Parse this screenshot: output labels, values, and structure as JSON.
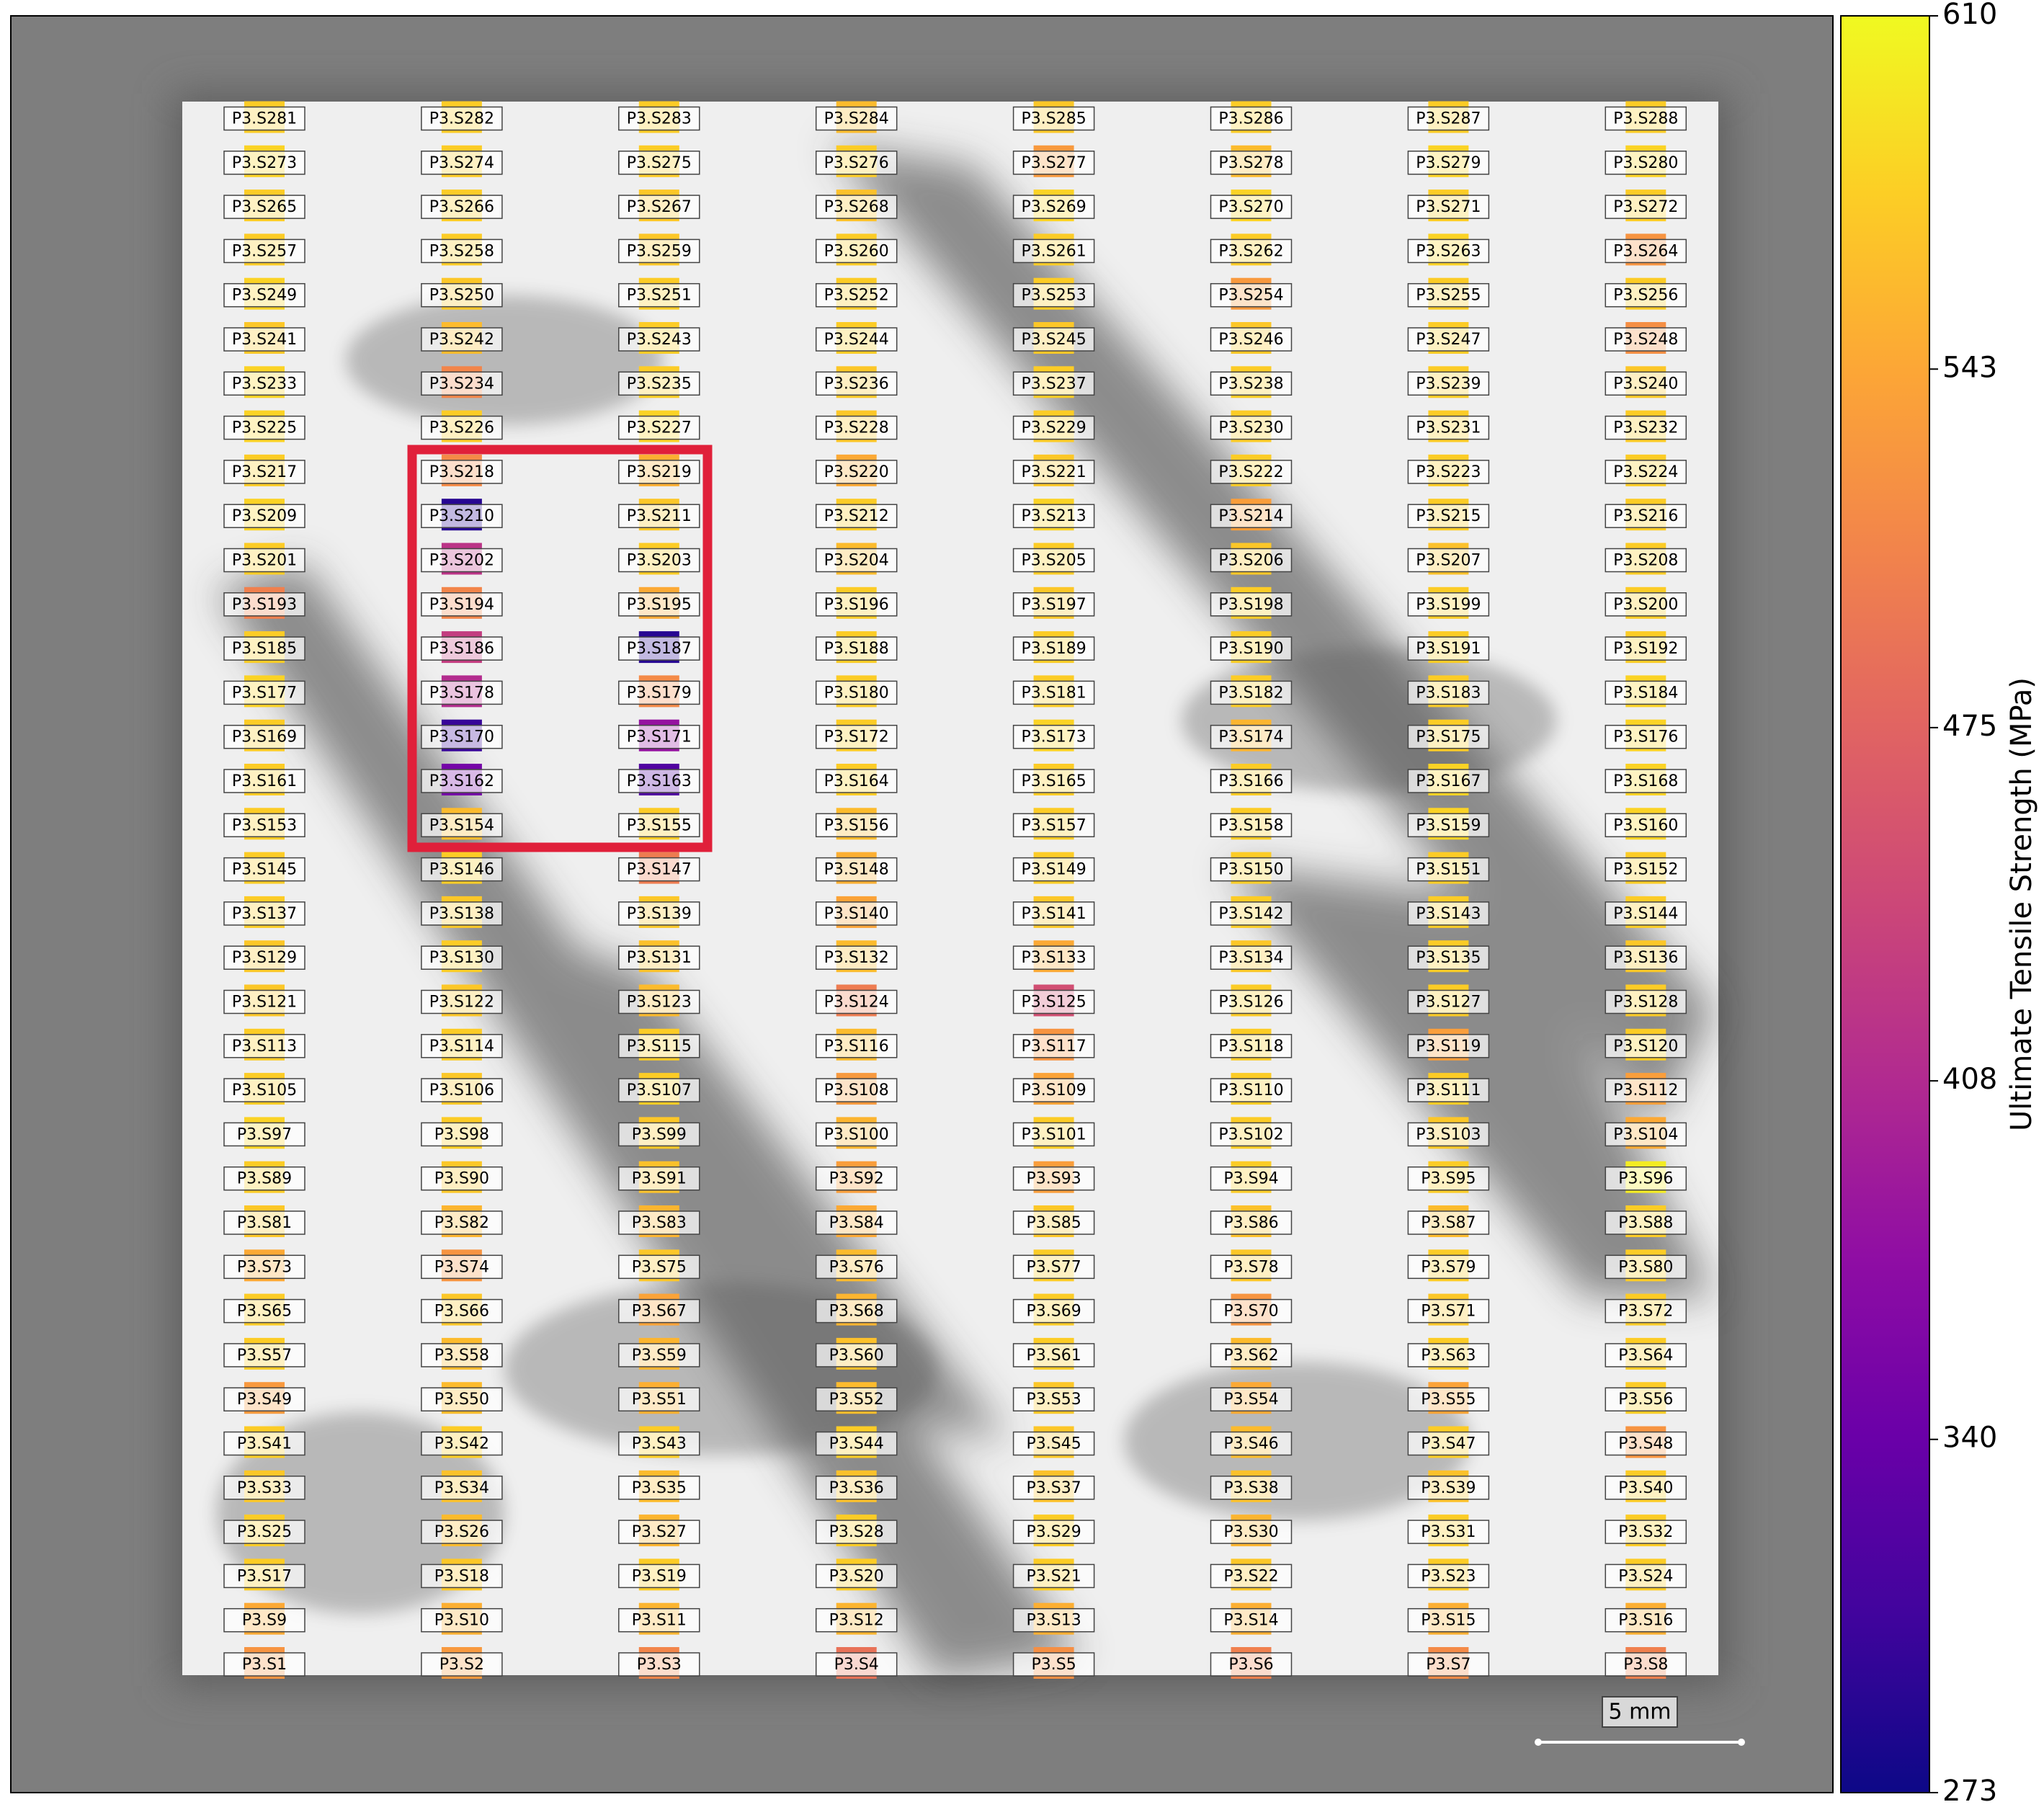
{
  "chart_data": {
    "type": "specimen_map",
    "colorbar_label": "Ultimate Tensile Strength (MPa)",
    "colormap": "plasma",
    "clim": [
      273,
      610
    ],
    "cticks": [
      273,
      340,
      408,
      475,
      543,
      610
    ],
    "scale_bar": "5 mm",
    "labels": [
      "P3.S1",
      "P3.S2",
      "P3.S3",
      "P3.S4",
      "P3.S5",
      "P3.S6",
      "P3.S7",
      "P3.S8",
      "P3.S9",
      "P3.S10",
      "P3.S11",
      "P3.S12",
      "P3.S13",
      "P3.S14",
      "P3.S15",
      "P3.S16",
      "P3.S17",
      "P3.S18",
      "P3.S19",
      "P3.S20",
      "P3.S21",
      "P3.S22",
      "P3.S23",
      "P3.S24",
      "P3.S25",
      "P3.S26",
      "P3.S27",
      "P3.S28",
      "P3.S29",
      "P3.S30",
      "P3.S31",
      "P3.S32",
      "P3.S33",
      "P3.S34",
      "P3.S35",
      "P3.S36",
      "P3.S37",
      "P3.S38",
      "P3.S39",
      "P3.S40",
      "P3.S41",
      "P3.S42",
      "P3.S43",
      "P3.S44",
      "P3.S45",
      "P3.S46",
      "P3.S47",
      "P3.S48",
      "P3.S49",
      "P3.S50",
      "P3.S51",
      "P3.S52",
      "P3.S53",
      "P3.S54",
      "P3.S55",
      "P3.S56",
      "P3.S57",
      "P3.S58",
      "P3.S59",
      "P3.S60",
      "P3.S61",
      "P3.S62",
      "P3.S63",
      "P3.S64",
      "P3.S65",
      "P3.S66",
      "P3.S67",
      "P3.S68",
      "P3.S69",
      "P3.S70",
      "P3.S71",
      "P3.S72",
      "P3.S73",
      "P3.S74",
      "P3.S75",
      "P3.S76",
      "P3.S77",
      "P3.S78",
      "P3.S79",
      "P3.S80",
      "P3.S81",
      "P3.S82",
      "P3.S83",
      "P3.S84",
      "P3.S85",
      "P3.S86",
      "P3.S87",
      "P3.S88",
      "P3.S89",
      "P3.S90",
      "P3.S91",
      "P3.S92",
      "P3.S93",
      "P3.S94",
      "P3.S95",
      "P3.S96",
      "P3.S97",
      "P3.S98",
      "P3.S99",
      "P3.S100",
      "P3.S101",
      "P3.S102",
      "P3.S103",
      "P3.S104",
      "P3.S105",
      "P3.S106",
      "P3.S107",
      "P3.S108",
      "P3.S109",
      "P3.S110",
      "P3.S111",
      "P3.S112",
      "P3.S113",
      "P3.S114",
      "P3.S115",
      "P3.S116",
      "P3.S117",
      "P3.S118",
      "P3.S119",
      "P3.S120",
      "P3.S121",
      "P3.S122",
      "P3.S123",
      "P3.S124",
      "P3.S125",
      "P3.S126",
      "P3.S127",
      "P3.S128",
      "P3.S129",
      "P3.S130",
      "P3.S131",
      "P3.S132",
      "P3.S133",
      "P3.S134",
      "P3.S135",
      "P3.S136",
      "P3.S137",
      "P3.S138",
      "P3.S139",
      "P3.S140",
      "P3.S141",
      "P3.S142",
      "P3.S143",
      "P3.S144",
      "P3.S145",
      "P3.S146",
      "P3.S147",
      "P3.S148",
      "P3.S149",
      "P3.S150",
      "P3.S151",
      "P3.S152",
      "P3.S153",
      "P3.S154",
      "P3.S155",
      "P3.S156",
      "P3.S157",
      "P3.S158",
      "P3.S159",
      "P3.S160",
      "P3.S161",
      "P3.S162",
      "P3.S163",
      "P3.S164",
      "P3.S165",
      "P3.S166",
      "P3.S167",
      "P3.S168",
      "P3.S169",
      "P3.S170",
      "P3.S171",
      "P3.S172",
      "P3.S173",
      "P3.S174",
      "P3.S175",
      "P3.S176",
      "P3.S177",
      "P3.S178",
      "P3.S179",
      "P3.S180",
      "P3.S181",
      "P3.S182",
      "P3.S183",
      "P3.S184",
      "P3.S185",
      "P3.S186",
      "P3.S187",
      "P3.S188",
      "P3.S189",
      "P3.S190",
      "P3.S191",
      "P3.S192",
      "P3.S193",
      "P3.S194",
      "P3.S195",
      "P3.S196",
      "P3.S197",
      "P3.S198",
      "P3.S199",
      "P3.S200",
      "P3.S201",
      "P3.S202",
      "P3.S203",
      "P3.S204",
      "P3.S205",
      "P3.S206",
      "P3.S207",
      "P3.S208",
      "P3.S209",
      "P3.S210",
      "P3.S211",
      "P3.S212",
      "P3.S213",
      "P3.S214",
      "P3.S215",
      "P3.S216",
      "P3.S217",
      "P3.S218",
      "P3.S219",
      "P3.S220",
      "P3.S221",
      "P3.S222",
      "P3.S223",
      "P3.S224",
      "P3.S225",
      "P3.S226",
      "P3.S227",
      "P3.S228",
      "P3.S229",
      "P3.S230",
      "P3.S231",
      "P3.S232",
      "P3.S233",
      "P3.S234",
      "P3.S235",
      "P3.S236",
      "P3.S237",
      "P3.S238",
      "P3.S239",
      "P3.S240",
      "P3.S241",
      "P3.S242",
      "P3.S243",
      "P3.S244",
      "P3.S245",
      "P3.S246",
      "P3.S247",
      "P3.S248",
      "P3.S249",
      "P3.S250",
      "P3.S251",
      "P3.S252",
      "P3.S253",
      "P3.S254",
      "P3.S255",
      "P3.S256",
      "P3.S257",
      "P3.S258",
      "P3.S259",
      "P3.S260",
      "P3.S261",
      "P3.S262",
      "P3.S263",
      "P3.S264",
      "P3.S265",
      "P3.S266",
      "P3.S267",
      "P3.S268",
      "P3.S269",
      "P3.S270",
      "P3.S271",
      "P3.S272",
      "P3.S273",
      "P3.S274",
      "P3.S275",
      "P3.S276",
      "P3.S277",
      "P3.S278",
      "P3.S279",
      "P3.S280",
      "P3.S281",
      "P3.S282",
      "P3.S283",
      "P3.S284",
      "P3.S285",
      "P3.S286",
      "P3.S287",
      "P3.S288"
    ],
    "values": [
      525,
      530,
      510,
      490,
      520,
      505,
      515,
      505,
      545,
      550,
      555,
      555,
      550,
      550,
      550,
      550,
      575,
      570,
      575,
      575,
      575,
      570,
      575,
      575,
      575,
      560,
      555,
      575,
      575,
      555,
      575,
      575,
      570,
      565,
      560,
      565,
      565,
      565,
      565,
      575,
      575,
      575,
      575,
      575,
      570,
      560,
      575,
      525,
      530,
      560,
      550,
      560,
      570,
      545,
      540,
      575,
      575,
      560,
      555,
      565,
      575,
      560,
      575,
      575,
      575,
      570,
      540,
      555,
      575,
      525,
      570,
      575,
      545,
      525,
      570,
      560,
      575,
      570,
      575,
      575,
      570,
      555,
      555,
      545,
      570,
      565,
      560,
      575,
      575,
      570,
      565,
      535,
      535,
      575,
      575,
      600,
      580,
      575,
      570,
      555,
      575,
      575,
      570,
      545,
      575,
      570,
      575,
      530,
      540,
      575,
      575,
      535,
      575,
      575,
      575,
      560,
      525,
      575,
      535,
      575,
      570,
      570,
      560,
      500,
      450,
      575,
      575,
      575,
      570,
      575,
      565,
      560,
      545,
      570,
      575,
      570,
      575,
      570,
      570,
      540,
      570,
      575,
      575,
      575,
      575,
      575,
      500,
      550,
      575,
      575,
      575,
      575,
      575,
      560,
      575,
      560,
      575,
      575,
      580,
      580,
      575,
      350,
      320,
      575,
      575,
      575,
      580,
      580,
      575,
      300,
      380,
      575,
      580,
      555,
      575,
      580,
      580,
      410,
      515,
      575,
      575,
      575,
      575,
      580,
      575,
      430,
      290,
      575,
      575,
      575,
      575,
      575,
      505,
      510,
      545,
      575,
      570,
      575,
      575,
      575,
      575,
      420,
      575,
      560,
      575,
      570,
      565,
      575,
      580,
      290,
      570,
      575,
      580,
      535,
      575,
      575,
      575,
      515,
      550,
      545,
      570,
      575,
      575,
      575,
      580,
      575,
      580,
      570,
      575,
      575,
      575,
      575,
      580,
      510,
      575,
      570,
      575,
      575,
      575,
      570,
      570,
      560,
      575,
      575,
      570,
      570,
      575,
      520,
      580,
      570,
      575,
      575,
      575,
      530,
      575,
      575,
      575,
      575,
      570,
      575,
      575,
      575,
      580,
      525,
      575,
      575,
      570,
      565,
      580,
      580,
      575,
      575,
      580,
      575,
      575,
      575,
      530,
      560,
      580,
      580,
      575,
      575,
      575,
      560,
      570,
      575,
      575,
      575
    ]
  }
}
